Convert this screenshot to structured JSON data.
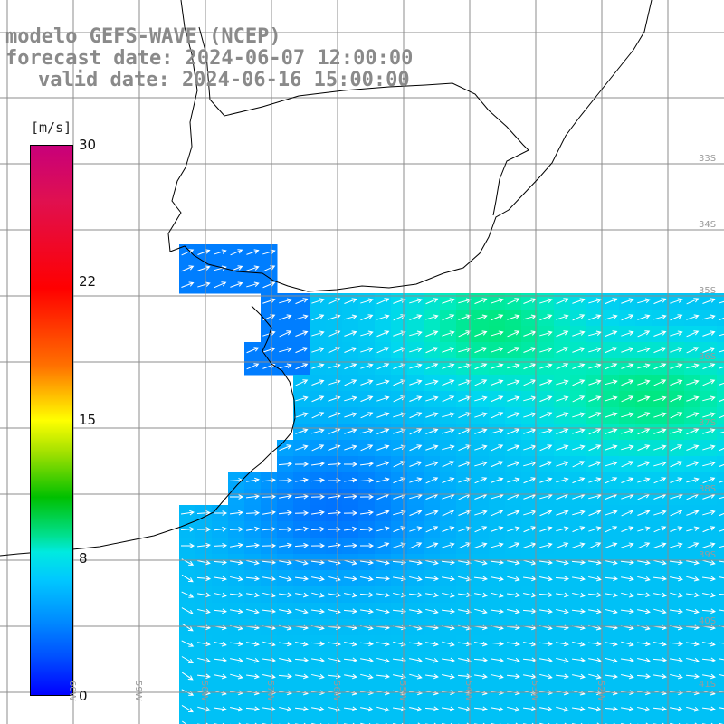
{
  "title": {
    "line1": "modelo GEFS-WAVE (NCEP)",
    "line2": "forecast date: 2024-06-07 12:00:00",
    "line3": "valid date: 2024-06-16 15:00:00"
  },
  "colorbar": {
    "units": "[m/s]",
    "ticks": [
      "30",
      "22",
      "15",
      "8",
      "0"
    ]
  },
  "grid_labels": {
    "lat": [
      "33S",
      "34S",
      "35S",
      "36S",
      "37S",
      "38S",
      "39S",
      "40S",
      "41S"
    ],
    "lon": [
      "61W",
      "60W",
      "59W",
      "58W",
      "57W",
      "56W",
      "55W",
      "54W",
      "53W",
      "52W"
    ]
  },
  "colors": {
    "land": "#ffffff",
    "coast": "#000000",
    "grid": "#8c8c8c",
    "arrows": "#ffffff",
    "title": "#8a8a8a"
  }
}
